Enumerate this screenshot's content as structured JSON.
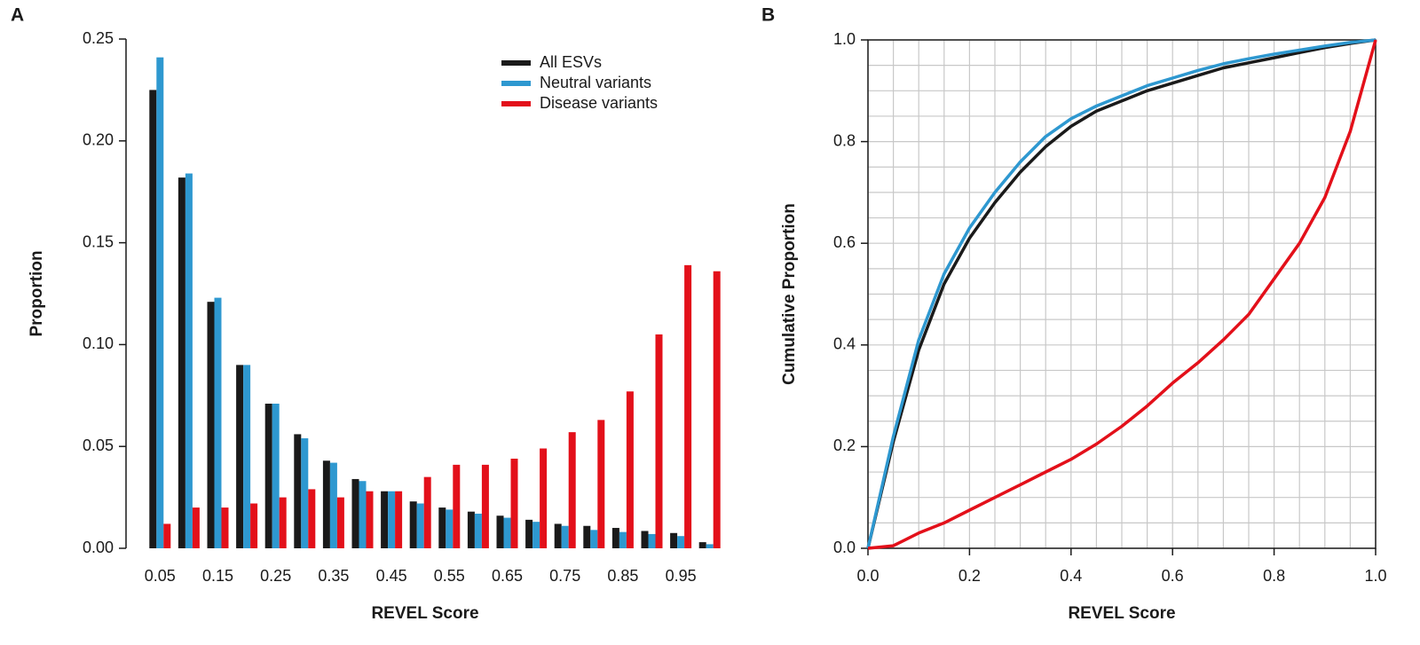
{
  "chart_data": [
    {
      "type": "bar",
      "panel_label": "A",
      "xlabel": "REVEL Score",
      "ylabel": "Proportion",
      "categories": [
        "0.05",
        null,
        "0.15",
        null,
        "0.25",
        null,
        "0.35",
        null,
        "0.45",
        null,
        "0.55",
        null,
        "0.65",
        null,
        "0.75",
        null,
        "0.85",
        null,
        "0.95",
        null
      ],
      "series": [
        {
          "name": "All ESVs",
          "color": "#1a1a1a",
          "values": [
            0.225,
            0.182,
            0.121,
            0.09,
            0.071,
            0.056,
            0.043,
            0.034,
            0.028,
            0.023,
            0.02,
            0.018,
            0.016,
            0.014,
            0.012,
            0.011,
            0.01,
            0.0085,
            0.0075,
            0.003
          ]
        },
        {
          "name": "Neutral variants",
          "color": "#2e98d0",
          "values": [
            0.241,
            0.184,
            0.123,
            0.09,
            0.071,
            0.054,
            0.042,
            0.033,
            0.028,
            0.022,
            0.019,
            0.017,
            0.015,
            0.013,
            0.011,
            0.009,
            0.008,
            0.007,
            0.006,
            0.002
          ]
        },
        {
          "name": "Disease variants",
          "color": "#e3101a",
          "values": [
            0.012,
            0.02,
            0.02,
            0.022,
            0.025,
            0.029,
            0.025,
            0.028,
            0.028,
            0.035,
            0.041,
            0.041,
            0.044,
            0.049,
            0.057,
            0.063,
            0.077,
            0.105,
            0.139,
            0.136
          ]
        }
      ],
      "ylim": [
        0,
        0.25
      ],
      "yticks": [
        {
          "value": 0,
          "label": "0.00"
        },
        {
          "value": 0.05,
          "label": "0.05"
        },
        {
          "value": 0.1,
          "label": "0.10"
        },
        {
          "value": 0.15,
          "label": "0.15"
        },
        {
          "value": 0.2,
          "label": "0.20"
        },
        {
          "value": 0.25,
          "label": "0.25"
        }
      ],
      "legend": "upper right"
    },
    {
      "type": "line",
      "panel_label": "B",
      "xlabel": "REVEL Score",
      "ylabel": "Cumulative Proportion",
      "x": [
        0,
        0.05,
        0.1,
        0.15,
        0.2,
        0.25,
        0.3,
        0.35,
        0.4,
        0.45,
        0.5,
        0.55,
        0.6,
        0.65,
        0.7,
        0.75,
        0.8,
        0.85,
        0.9,
        0.95,
        1
      ],
      "series": [
        {
          "name": "All ESVs",
          "color": "#1a1a1a",
          "values": [
            0,
            0.21,
            0.39,
            0.52,
            0.61,
            0.68,
            0.74,
            0.79,
            0.83,
            0.86,
            0.88,
            0.9,
            0.915,
            0.93,
            0.945,
            0.955,
            0.965,
            0.975,
            0.985,
            0.993,
            1
          ]
        },
        {
          "name": "Neutral variants",
          "color": "#2e98d0",
          "values": [
            0,
            0.22,
            0.41,
            0.54,
            0.63,
            0.7,
            0.76,
            0.81,
            0.845,
            0.87,
            0.89,
            0.91,
            0.925,
            0.94,
            0.953,
            0.963,
            0.972,
            0.98,
            0.988,
            0.995,
            1
          ]
        },
        {
          "name": "Disease variants",
          "color": "#e3101a",
          "values": [
            0,
            0.005,
            0.03,
            0.05,
            0.075,
            0.1,
            0.125,
            0.15,
            0.175,
            0.205,
            0.24,
            0.28,
            0.325,
            0.365,
            0.41,
            0.46,
            0.53,
            0.6,
            0.69,
            0.82,
            1
          ]
        }
      ],
      "xlim": [
        0,
        1
      ],
      "ylim": [
        0,
        1
      ],
      "xticks": [
        {
          "value": 0,
          "label": "0.0"
        },
        {
          "value": 0.2,
          "label": "0.2"
        },
        {
          "value": 0.4,
          "label": "0.4"
        },
        {
          "value": 0.6,
          "label": "0.6"
        },
        {
          "value": 0.8,
          "label": "0.8"
        },
        {
          "value": 1,
          "label": "1.0"
        }
      ],
      "yticks": [
        {
          "value": 0,
          "label": "0.0"
        },
        {
          "value": 0.2,
          "label": "0.2"
        },
        {
          "value": 0.4,
          "label": "0.4"
        },
        {
          "value": 0.6,
          "label": "0.6"
        },
        {
          "value": 0.8,
          "label": "0.8"
        },
        {
          "value": 1,
          "label": "1.0"
        }
      ],
      "grid": true
    }
  ]
}
